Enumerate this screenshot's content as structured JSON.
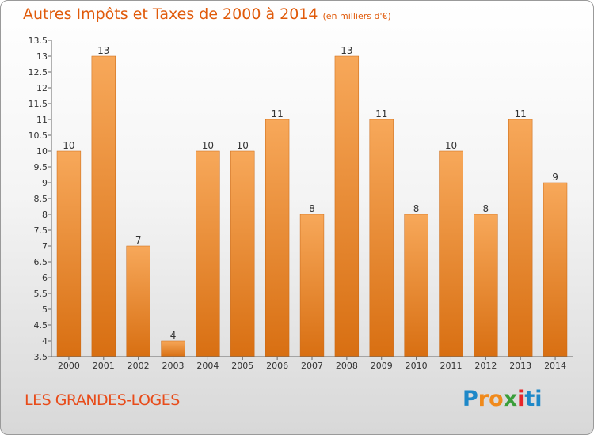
{
  "header": {
    "title": "Autres Impôts et Taxes de 2000 à 2014",
    "unit": "(en milliers d'€)"
  },
  "footer": {
    "place": "LES GRANDES-LOGES",
    "logo": "Proxiti",
    "logo_letters": [
      "P",
      "r",
      "o",
      "x",
      "i",
      "t",
      "i"
    ],
    "logo_colors": [
      "#1e88c8",
      "#f08a1c",
      "#f08a1c",
      "#3a9e3a",
      "#e8262a",
      "#1e88c8",
      "#1e88c8"
    ]
  },
  "chart_data": {
    "type": "bar",
    "title": "Autres Impôts et Taxes de 2000 à 2014",
    "subtitle": "(en milliers d'€)",
    "xlabel": "",
    "ylabel": "",
    "categories": [
      "2000",
      "2001",
      "2002",
      "2003",
      "2004",
      "2005",
      "2006",
      "2007",
      "2008",
      "2009",
      "2010",
      "2011",
      "2012",
      "2013",
      "2014"
    ],
    "values": [
      10,
      13,
      7,
      4,
      10,
      10,
      11,
      8,
      13,
      11,
      8,
      10,
      8,
      11,
      9
    ],
    "data_labels": [
      "10",
      "13",
      "7",
      "4",
      "10",
      "10",
      "11",
      "8",
      "13",
      "11",
      "8",
      "10",
      "8",
      "11",
      "9"
    ],
    "ylim": [
      3.5,
      13.5
    ],
    "yticks": [
      "3.5",
      "4",
      "4.5",
      "5",
      "5.5",
      "6",
      "6.5",
      "7",
      "7.5",
      "8",
      "8.5",
      "9",
      "9.5",
      "10",
      "10.5",
      "11",
      "11.5",
      "12",
      "12.5",
      "13",
      "13.5"
    ],
    "grid": false,
    "colors": {
      "bar_top": "#f7a85a",
      "bar_bottom": "#d86f12",
      "axis": "#666666"
    }
  }
}
